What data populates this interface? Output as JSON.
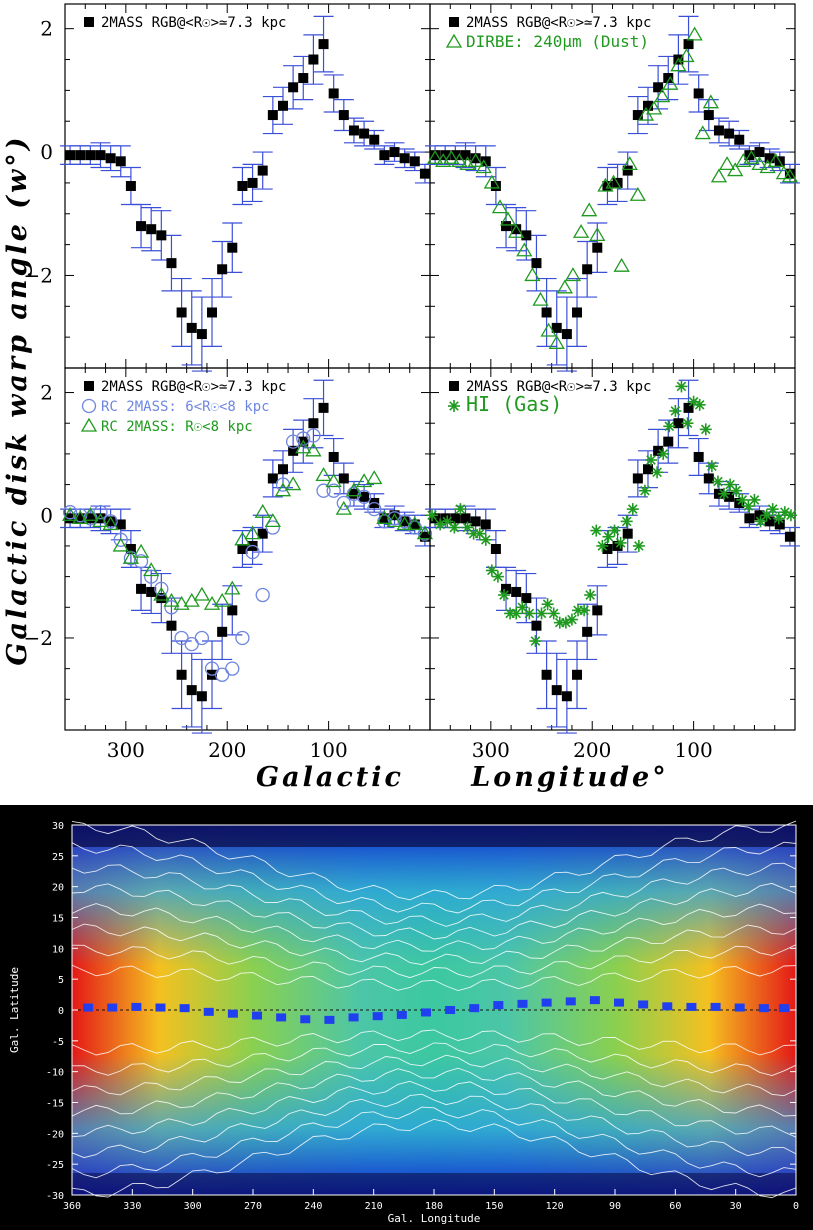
{
  "figure": {
    "ylabel": "Galactic disk warp angle (w°)",
    "xlabel_left": "Galactic",
    "xlabel_right": "Longitude°"
  },
  "colors": {
    "rgb": "#000000",
    "error": "#3a4fd8",
    "rc_circle": "#6f86e0",
    "green": "#1f9a1f",
    "warp_marker": "#1f3ff0"
  },
  "chart_data": [
    {
      "type": "scatter",
      "panel": "top-left",
      "xlim": [
        360,
        0
      ],
      "ylim": [
        -3.5,
        2.4
      ],
      "xticks": [
        300,
        200,
        100
      ],
      "yticks": [
        -2,
        0,
        2
      ],
      "legend": [
        {
          "symbol": "filled-square",
          "label": "2MASS RGB@<R☉>≃7.3 kpc"
        }
      ],
      "series": [
        {
          "name": "2MASS RGB@<R☉>≃7.3 kpc",
          "symbol": "filled-square",
          "x": [
            355,
            345,
            335,
            325,
            315,
            305,
            295,
            285,
            275,
            265,
            255,
            245,
            235,
            225,
            215,
            205,
            195,
            185,
            175,
            165,
            155,
            145,
            135,
            125,
            115,
            105,
            95,
            85,
            75,
            65,
            55,
            45,
            35,
            25,
            15,
            5
          ],
          "y": [
            -0.05,
            -0.05,
            -0.05,
            -0.05,
            -0.1,
            -0.15,
            -0.55,
            -1.2,
            -1.25,
            -1.35,
            -1.8,
            -2.6,
            -2.85,
            -2.95,
            -2.6,
            -1.9,
            -1.55,
            -0.55,
            -0.5,
            -0.3,
            0.6,
            0.75,
            1.05,
            1.2,
            1.5,
            1.75,
            0.95,
            0.6,
            0.35,
            0.3,
            0.2,
            -0.05,
            0,
            -0.1,
            -0.15,
            -0.35
          ],
          "err": [
            0.15,
            0.15,
            0.15,
            0.2,
            0.2,
            0.25,
            0.3,
            0.35,
            0.35,
            0.4,
            0.45,
            0.55,
            0.6,
            0.6,
            0.55,
            0.45,
            0.4,
            0.3,
            0.3,
            0.3,
            0.3,
            0.3,
            0.35,
            0.35,
            0.4,
            0.45,
            0.3,
            0.25,
            0.2,
            0.2,
            0.15,
            0.15,
            0.15,
            0.15,
            0.15,
            0.15
          ]
        }
      ]
    },
    {
      "type": "scatter",
      "panel": "top-right",
      "xlim": [
        360,
        0
      ],
      "ylim": [
        -3.5,
        2.4
      ],
      "xticks": [
        300,
        200,
        100
      ],
      "yticks": [
        -2,
        0,
        2
      ],
      "legend": [
        {
          "symbol": "filled-square",
          "label": "2MASS RGB@<R☉>≃7.3 kpc"
        },
        {
          "symbol": "triangle",
          "label": "DIRBE: 240μm (Dust)"
        }
      ],
      "series": [
        {
          "name": "2MASS RGB@<R☉>≃7.3 kpc",
          "symbol": "filled-square",
          "same_as_panel": "top-left"
        },
        {
          "name": "DIRBE: 240μm (Dust)",
          "symbol": "triangle",
          "x": [
            355,
            347,
            339,
            331,
            323,
            315,
            307,
            299,
            291,
            283,
            275,
            267,
            259,
            251,
            243,
            235,
            227,
            219,
            211,
            203,
            195,
            187,
            179,
            171,
            163,
            155,
            147,
            139,
            131,
            123,
            115,
            107,
            99,
            91,
            83,
            75,
            67,
            59,
            51,
            43,
            35,
            27,
            19,
            11,
            5
          ],
          "y": [
            -0.1,
            -0.15,
            -0.1,
            -0.15,
            -0.2,
            -0.15,
            -0.25,
            -0.5,
            -0.9,
            -1.1,
            -1.3,
            -1.6,
            -2.0,
            -2.4,
            -2.9,
            -3.1,
            -2.2,
            -2.0,
            -1.3,
            -0.95,
            -1.35,
            -0.55,
            -0.5,
            -1.85,
            -0.2,
            -0.7,
            0.6,
            0.7,
            0.9,
            1.1,
            1.4,
            1.55,
            1.9,
            0.3,
            0.8,
            -0.4,
            -0.2,
            -0.3,
            -0.15,
            -0.1,
            -0.2,
            -0.25,
            -0.15,
            -0.35,
            -0.4
          ]
        }
      ]
    },
    {
      "type": "scatter",
      "panel": "bottom-left",
      "xlim": [
        360,
        0
      ],
      "ylim": [
        -3.5,
        2.4
      ],
      "xticks": [
        300,
        200,
        100
      ],
      "yticks": [
        -2,
        0,
        2
      ],
      "legend": [
        {
          "symbol": "filled-square",
          "label": "2MASS RGB@<R☉>≃7.3 kpc"
        },
        {
          "symbol": "circle",
          "label": "RC 2MASS: 6<R☉<8 kpc"
        },
        {
          "symbol": "triangle",
          "label": "RC 2MASS: R☉<8 kpc"
        }
      ],
      "series": [
        {
          "name": "2MASS RGB@<R☉>≃7.3 kpc",
          "symbol": "filled-square",
          "same_as_panel": "top-left"
        },
        {
          "name": "RC 2MASS: 6<R☉<8 kpc",
          "symbol": "circle",
          "x": [
            355,
            345,
            335,
            325,
            315,
            305,
            295,
            285,
            275,
            265,
            255,
            245,
            235,
            225,
            215,
            205,
            195,
            185,
            175,
            165,
            155,
            145,
            135,
            125,
            115,
            105,
            95,
            85,
            75,
            65,
            55,
            45,
            35,
            25,
            15,
            5
          ],
          "y": [
            0.05,
            0,
            -0.05,
            0.05,
            -0.1,
            -0.4,
            -0.7,
            -0.75,
            -1.0,
            -1.2,
            -1.5,
            -2.0,
            -2.1,
            -2.0,
            -2.5,
            -2.6,
            -2.5,
            -2.0,
            -0.6,
            -1.3,
            -0.2,
            0.5,
            1.2,
            1.25,
            1.3,
            0.4,
            0.4,
            0.2,
            0.35,
            0.3,
            0.1,
            -0.1,
            -0.05,
            -0.1,
            -0.2,
            -0.3
          ]
        },
        {
          "name": "RC 2MASS: R☉<8 kpc",
          "symbol": "triangle",
          "x": [
            355,
            345,
            335,
            325,
            315,
            305,
            295,
            285,
            275,
            265,
            255,
            245,
            235,
            225,
            215,
            205,
            195,
            185,
            175,
            165,
            155,
            145,
            135,
            125,
            115,
            105,
            95,
            85,
            75,
            65,
            55,
            45,
            35,
            25,
            15,
            5
          ],
          "y": [
            0,
            -0.05,
            0,
            -0.1,
            -0.15,
            -0.5,
            -0.7,
            -0.6,
            -0.9,
            -1.3,
            -1.4,
            -1.45,
            -1.4,
            -1.3,
            -1.45,
            -1.4,
            -1.2,
            -0.4,
            -0.3,
            0.05,
            -0.1,
            0.4,
            0.5,
            1.1,
            1.05,
            0.65,
            0.55,
            0.1,
            0.4,
            0.55,
            0.6,
            -0.05,
            -0.1,
            -0.15,
            -0.15,
            -0.3
          ]
        }
      ]
    },
    {
      "type": "scatter",
      "panel": "bottom-right",
      "xlim": [
        360,
        0
      ],
      "ylim": [
        -3.5,
        2.4
      ],
      "xticks": [
        300,
        200,
        100
      ],
      "yticks": [
        -2,
        0,
        2
      ],
      "legend": [
        {
          "symbol": "filled-square",
          "label": "2MASS RGB@<R☉>≃7.3 kpc"
        },
        {
          "symbol": "asterisk",
          "label": "HI (Gas)"
        }
      ],
      "series": [
        {
          "name": "2MASS RGB@<R☉>≃7.3 kpc",
          "symbol": "filled-square",
          "same_as_panel": "top-left"
        },
        {
          "name": "HI (Gas)",
          "symbol": "asterisk",
          "x": [
            358,
            350,
            343,
            336,
            330,
            323,
            317,
            311,
            305,
            299,
            293,
            287,
            281,
            275,
            269,
            262,
            256,
            250,
            244,
            238,
            232,
            226,
            220,
            214,
            208,
            202,
            196,
            190,
            184,
            178,
            172,
            166,
            160,
            154,
            148,
            142,
            136,
            130,
            124,
            118,
            112,
            106,
            100,
            94,
            88,
            82,
            76,
            70,
            64,
            58,
            52,
            46,
            40,
            34,
            28,
            22,
            16,
            10,
            4
          ],
          "y": [
            0,
            -0.15,
            -0.1,
            -0.2,
            0.1,
            -0.2,
            -0.3,
            -0.3,
            -0.4,
            -0.9,
            -1.0,
            -1.3,
            -1.6,
            -1.6,
            -1.5,
            -1.6,
            -2.05,
            -1.6,
            -1.45,
            -1.6,
            -1.75,
            -1.75,
            -1.7,
            -1.55,
            -1.55,
            -1.3,
            -0.25,
            -0.5,
            -0.35,
            -0.25,
            -0.45,
            -0.1,
            0.1,
            -0.5,
            0.4,
            0.9,
            0.7,
            1.0,
            1.45,
            1.7,
            2.1,
            1.5,
            1.85,
            1.8,
            1.4,
            0.8,
            0.55,
            0.35,
            0.5,
            0.4,
            0.25,
            0.15,
            0.25,
            -0.1,
            0,
            0.1,
            -0.05,
            0.05,
            0
          ]
        }
      ]
    },
    {
      "type": "heatmap",
      "panel": "sky-map",
      "xlabel": "Gal. Longitude",
      "ylabel": "Gal. Latitude",
      "xticks": [
        360,
        330,
        300,
        270,
        240,
        210,
        180,
        150,
        120,
        90,
        60,
        30,
        0
      ],
      "yticks": [
        30,
        25,
        20,
        15,
        10,
        5,
        0,
        -5,
        -10,
        -15,
        -20,
        -25,
        -30
      ],
      "xlim": [
        360,
        0
      ],
      "ylim": [
        -30,
        30
      ],
      "overlay": {
        "name": "warp midplane",
        "symbol": "filled-square",
        "x": [
          352,
          340,
          328,
          316,
          304,
          292,
          280,
          268,
          256,
          244,
          232,
          220,
          208,
          196,
          184,
          172,
          160,
          148,
          136,
          124,
          112,
          100,
          88,
          76,
          64,
          52,
          40,
          28,
          16,
          6
        ],
        "y": [
          0.4,
          0.4,
          0.5,
          0.4,
          0.3,
          -0.3,
          -0.6,
          -0.9,
          -1.2,
          -1.5,
          -1.6,
          -1.2,
          -1.0,
          -0.8,
          -0.4,
          0,
          0.3,
          0.8,
          1.0,
          1.2,
          1.4,
          1.6,
          1.2,
          0.9,
          0.6,
          0.5,
          0.5,
          0.4,
          0.3,
          0.3
        ]
      }
    }
  ]
}
